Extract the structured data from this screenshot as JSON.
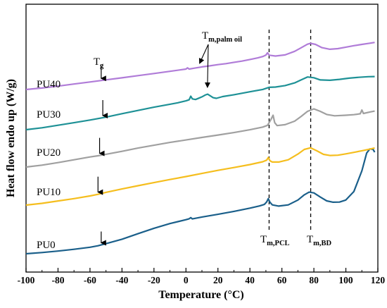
{
  "chart_data": {
    "type": "line",
    "title": "",
    "xlabel": "Temperature (°C)",
    "ylabel": "Heat flow endo up (W/g)",
    "xlim": [
      -100,
      120
    ],
    "xticks": [
      -100,
      -80,
      -60,
      -40,
      -20,
      0,
      20,
      40,
      60,
      80,
      100,
      120
    ],
    "grid": false,
    "legend": "none",
    "series": [
      {
        "name": "PU0",
        "color": "#1a5f8a",
        "points": [
          [
            -100,
            0.0
          ],
          [
            -90,
            0.8
          ],
          [
            -80,
            1.8
          ],
          [
            -70,
            3.0
          ],
          [
            -60,
            4.4
          ],
          [
            -55,
            5.4
          ],
          [
            -50,
            6.8
          ],
          [
            -40,
            9.8
          ],
          [
            -30,
            13.5
          ],
          [
            -20,
            17.2
          ],
          [
            -10,
            20.4
          ],
          [
            0,
            23.0
          ],
          [
            2,
            23.6
          ],
          [
            3,
            24.4
          ],
          [
            4,
            23.5
          ],
          [
            10,
            24.8
          ],
          [
            20,
            26.6
          ],
          [
            30,
            28.6
          ],
          [
            40,
            30.8
          ],
          [
            46,
            32.3
          ],
          [
            49,
            33.3
          ],
          [
            50.5,
            35.0
          ],
          [
            51.5,
            37.2
          ],
          [
            52.5,
            34.8
          ],
          [
            54,
            33.0
          ],
          [
            58,
            32.2
          ],
          [
            64,
            33.0
          ],
          [
            70,
            36.3
          ],
          [
            74,
            39.8
          ],
          [
            77,
            41.6
          ],
          [
            80,
            41.1
          ],
          [
            84,
            38.3
          ],
          [
            88,
            35.7
          ],
          [
            92,
            34.8
          ],
          [
            96,
            34.9
          ],
          [
            100,
            36.3
          ],
          [
            105,
            42.0
          ],
          [
            110,
            56.0
          ],
          [
            113,
            68.0
          ],
          [
            115,
            70.8
          ],
          [
            117,
            70.5
          ],
          [
            118,
            68.6
          ]
        ]
      },
      {
        "name": "PU10",
        "color": "#f5be1e",
        "points": [
          [
            -100,
            0.0
          ],
          [
            -90,
            1.2
          ],
          [
            -80,
            2.8
          ],
          [
            -70,
            4.4
          ],
          [
            -60,
            6.2
          ],
          [
            -55,
            7.3
          ],
          [
            -50,
            8.6
          ],
          [
            -40,
            10.9
          ],
          [
            -30,
            13.1
          ],
          [
            -20,
            15.2
          ],
          [
            -10,
            17.3
          ],
          [
            0,
            19.3
          ],
          [
            10,
            21.4
          ],
          [
            20,
            23.5
          ],
          [
            30,
            25.4
          ],
          [
            40,
            27.4
          ],
          [
            48,
            29.3
          ],
          [
            50.5,
            30.4
          ],
          [
            51.5,
            32.2
          ],
          [
            52.5,
            30.0
          ],
          [
            54,
            29.1
          ],
          [
            58,
            29.1
          ],
          [
            64,
            30.6
          ],
          [
            70,
            34.5
          ],
          [
            74,
            37.6
          ],
          [
            78,
            38.7
          ],
          [
            82,
            36.6
          ],
          [
            86,
            34.3
          ],
          [
            90,
            33.5
          ],
          [
            95,
            33.7
          ],
          [
            100,
            34.6
          ],
          [
            105,
            35.6
          ],
          [
            110,
            36.7
          ],
          [
            115,
            37.8
          ],
          [
            118,
            38.6
          ]
        ]
      },
      {
        "name": "PU20",
        "color": "#a0a0a0",
        "points": [
          [
            -100,
            0.0
          ],
          [
            -90,
            1.3
          ],
          [
            -80,
            3.0
          ],
          [
            -70,
            4.9
          ],
          [
            -60,
            6.8
          ],
          [
            -55,
            7.6
          ],
          [
            -50,
            8.6
          ],
          [
            -40,
            10.6
          ],
          [
            -30,
            12.8
          ],
          [
            -20,
            14.7
          ],
          [
            -10,
            16.6
          ],
          [
            0,
            18.3
          ],
          [
            10,
            20.0
          ],
          [
            20,
            21.6
          ],
          [
            30,
            23.3
          ],
          [
            40,
            25.2
          ],
          [
            48,
            27.0
          ],
          [
            51,
            28.2
          ],
          [
            53,
            31.8
          ],
          [
            54.5,
            35.0
          ],
          [
            55.5,
            30.0
          ],
          [
            57,
            28.0
          ],
          [
            62,
            28.6
          ],
          [
            68,
            31.0
          ],
          [
            72,
            34.2
          ],
          [
            76,
            37.6
          ],
          [
            80,
            39.3
          ],
          [
            84,
            37.6
          ],
          [
            88,
            35.5
          ],
          [
            93,
            34.6
          ],
          [
            100,
            35.0
          ],
          [
            105,
            35.4
          ],
          [
            109,
            36.0
          ],
          [
            110,
            38.5
          ],
          [
            111,
            36.2
          ],
          [
            115,
            37.2
          ],
          [
            118,
            37.8
          ]
        ]
      },
      {
        "name": "PU30",
        "color": "#1e9196",
        "points": [
          [
            -100,
            0.0
          ],
          [
            -90,
            1.3
          ],
          [
            -80,
            3.0
          ],
          [
            -70,
            4.7
          ],
          [
            -60,
            6.5
          ],
          [
            -50,
            8.5
          ],
          [
            -40,
            10.8
          ],
          [
            -30,
            13.0
          ],
          [
            -20,
            15.2
          ],
          [
            -10,
            17.2
          ],
          [
            -5,
            18.2
          ],
          [
            0,
            19.5
          ],
          [
            2,
            20.2
          ],
          [
            3,
            22.6
          ],
          [
            4,
            20.8
          ],
          [
            6,
            20.4
          ],
          [
            8,
            21.3
          ],
          [
            10,
            22.2
          ],
          [
            12,
            23.4
          ],
          [
            13.5,
            24.0
          ],
          [
            15,
            23.0
          ],
          [
            17,
            21.6
          ],
          [
            19,
            21.2
          ],
          [
            23,
            22.4
          ],
          [
            30,
            23.6
          ],
          [
            40,
            25.6
          ],
          [
            48,
            27.2
          ],
          [
            52,
            28.6
          ],
          [
            56,
            28.8
          ],
          [
            62,
            29.8
          ],
          [
            68,
            31.6
          ],
          [
            72,
            33.6
          ],
          [
            76,
            35.6
          ],
          [
            80,
            35.1
          ],
          [
            84,
            33.6
          ],
          [
            90,
            33.4
          ],
          [
            96,
            34.0
          ],
          [
            102,
            34.8
          ],
          [
            108,
            35.4
          ],
          [
            114,
            35.8
          ],
          [
            118,
            35.9
          ]
        ]
      },
      {
        "name": "PU40",
        "color": "#b07cd8",
        "points": [
          [
            -100,
            0.0
          ],
          [
            -90,
            1.0
          ],
          [
            -80,
            2.3
          ],
          [
            -70,
            3.7
          ],
          [
            -60,
            5.1
          ],
          [
            -50,
            6.5
          ],
          [
            -40,
            7.9
          ],
          [
            -30,
            9.4
          ],
          [
            -20,
            10.8
          ],
          [
            -10,
            12.3
          ],
          [
            0,
            13.8
          ],
          [
            1,
            14.6
          ],
          [
            2,
            13.8
          ],
          [
            5,
            14.4
          ],
          [
            10,
            15.3
          ],
          [
            15,
            16.0
          ],
          [
            20,
            16.8
          ],
          [
            25,
            17.5
          ],
          [
            30,
            18.4
          ],
          [
            35,
            19.2
          ],
          [
            40,
            20.3
          ],
          [
            45,
            21.4
          ],
          [
            48,
            22.3
          ],
          [
            50,
            23.3
          ],
          [
            51,
            24.8
          ],
          [
            52,
            23.2
          ],
          [
            56,
            22.6
          ],
          [
            62,
            23.4
          ],
          [
            68,
            25.8
          ],
          [
            72,
            28.2
          ],
          [
            76,
            30.6
          ],
          [
            78,
            31.2
          ],
          [
            81,
            30.5
          ],
          [
            85,
            28.3
          ],
          [
            90,
            27.2
          ],
          [
            95,
            27.6
          ],
          [
            100,
            28.6
          ],
          [
            105,
            29.6
          ],
          [
            110,
            30.5
          ],
          [
            115,
            31.3
          ],
          [
            118,
            31.8
          ]
        ]
      }
    ],
    "series_labels": [
      "PU40",
      "PU30",
      "PU20",
      "PU10",
      "PU0"
    ],
    "reference_lines": [
      {
        "x": 52,
        "label_main": "T",
        "label_sub": "m,PCL"
      },
      {
        "x": 78,
        "label_main": "T",
        "label_sub": "m,BD"
      }
    ],
    "annotations": [
      {
        "label_main": "T",
        "label_sub": "g",
        "arrows_at_x": [
          -53,
          -55,
          -54,
          -52,
          -53
        ]
      },
      {
        "label_main": "T",
        "label_sub": "m,palm oil",
        "arrows_at_x": [
          5,
          13
        ]
      }
    ]
  }
}
